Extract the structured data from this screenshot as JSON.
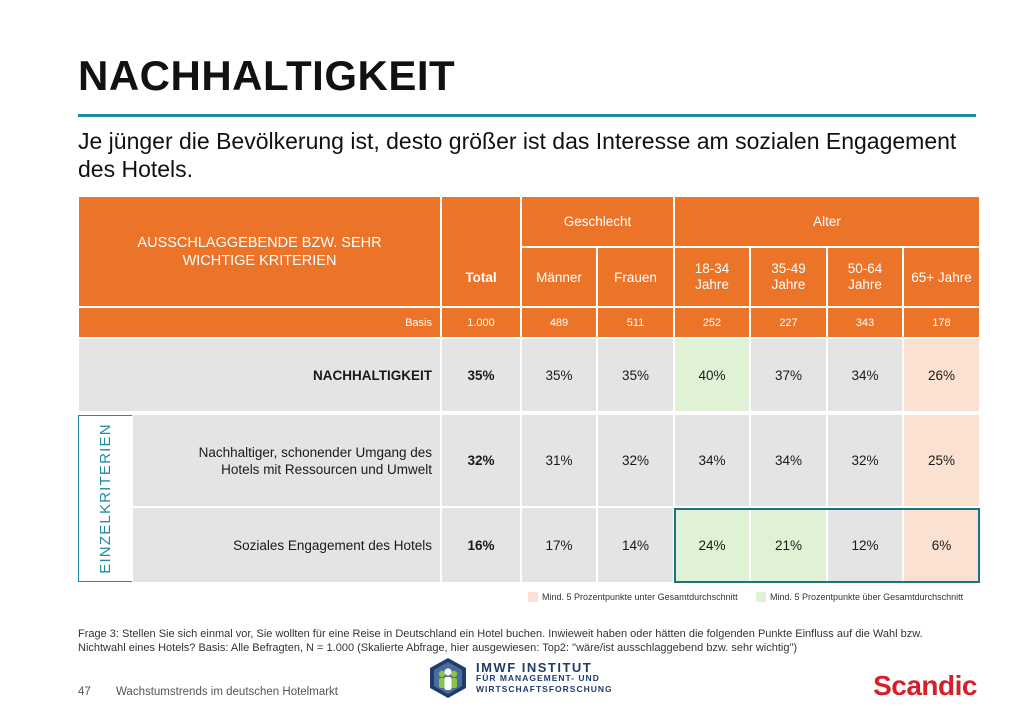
{
  "title": "NACHHALTIGKEIT",
  "subtitle": "Je jünger die Bevölkerung ist, desto größer ist das Interesse am sozialen Engagement des Hotels.",
  "colors": {
    "header": "#ec7429",
    "rule": "#1f8aa3",
    "above_avg": "#dff2d6",
    "below_avg": "#fbe1d1",
    "brand": "#d4202a"
  },
  "table": {
    "criteria_header": "AUSSCHLAGGEBENDE BZW. SEHR WICHTIGE KRITERIEN",
    "group_gender": "Geschlecht",
    "group_age": "Alter",
    "columns": [
      "Total",
      "Männer",
      "Frauen",
      "18-34 Jahre",
      "35-49 Jahre",
      "50-64 Jahre",
      "65+ Jahre"
    ],
    "basis_label": "Basis",
    "basis": [
      "1.000",
      "489",
      "511",
      "252",
      "227",
      "343",
      "178"
    ],
    "einzel_label": "EINZELKRITERIEN",
    "rows": [
      {
        "label": "NACHHALTIGKEIT",
        "values": [
          "35%",
          "35%",
          "35%",
          "40%",
          "37%",
          "34%",
          "26%"
        ]
      },
      {
        "label": "Nachhaltiger, schonender Umgang des Hotels mit Ressourcen und Umwelt",
        "values": [
          "32%",
          "31%",
          "32%",
          "34%",
          "34%",
          "32%",
          "25%"
        ]
      },
      {
        "label": "Soziales Engagement des Hotels",
        "values": [
          "16%",
          "17%",
          "14%",
          "24%",
          "21%",
          "12%",
          "6%"
        ]
      }
    ]
  },
  "legend": {
    "below": "Mind. 5 Prozentpunkte unter Gesamtdurchschnitt",
    "above": "Mind. 5 Prozentpunkte über Gesamtdurchschnitt"
  },
  "footnote": "Frage 3: Stellen Sie sich einmal vor, Sie wollten für eine Reise in Deutschland ein Hotel buchen. Inwieweit haben oder hätten die folgenden Punkte Einfluss auf die Wahl bzw. Nichtwahl eines Hotels? Basis: Alle Befragten, N = 1.000 (Skalierte Abfrage, hier ausgewiesen: Top2: \"wäre/ist ausschlaggebend bzw. sehr wichtig\")",
  "footer": {
    "page_number": "47",
    "deck_title": "Wachstumstrends im deutschen Hotelmarkt",
    "logo_line1": "IMWF INSTITUT",
    "logo_line2": "FÜR MANAGEMENT- UND",
    "logo_line3": "WIRTSCHAFTSFORSCHUNG",
    "brand": "Scandic"
  }
}
